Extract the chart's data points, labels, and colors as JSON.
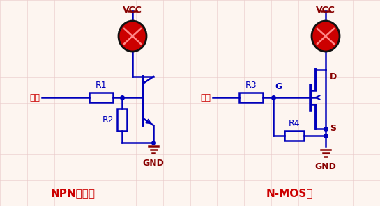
{
  "bg_color": "#fdf5f0",
  "line_color": "#0000bb",
  "red_color": "#cc0000",
  "dark_red": "#880000",
  "grid_color": "#e8c8c8",
  "title_left": "NPN三極管",
  "title_right": "N-MOS管",
  "label_vin_left": "輸入",
  "label_vin_right": "輸入",
  "label_vcc_left": "VCC",
  "label_vcc_right": "VCC",
  "label_gnd_left": "GND",
  "label_gnd_right": "GND",
  "label_r1": "R1",
  "label_r2": "R2",
  "label_r3": "R3",
  "label_r4": "R4",
  "label_g": "G",
  "label_d": "D",
  "label_s": "S"
}
